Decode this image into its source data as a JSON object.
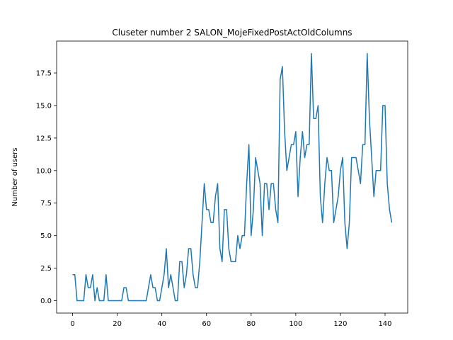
{
  "chart_data": {
    "type": "line",
    "title": "Cluseter number 2 SALON_MojeFixedPostActOldColumns",
    "xlabel": "",
    "ylabel": "Number of users",
    "xlim": [
      -7.15,
      150.15
    ],
    "ylim": [
      -0.95,
      19.95
    ],
    "xticks": [
      0,
      20,
      40,
      60,
      80,
      100,
      120,
      140
    ],
    "xtick_labels": [
      "0",
      "20",
      "40",
      "60",
      "80",
      "100",
      "120",
      "140"
    ],
    "yticks": [
      0,
      2.5,
      5,
      7.5,
      10,
      12.5,
      15,
      17.5
    ],
    "ytick_labels": [
      "0.0",
      "2.5",
      "5.0",
      "7.5",
      "10.0",
      "12.5",
      "15.0",
      "17.5"
    ],
    "grid": false,
    "legend": false,
    "series": [
      {
        "color": "#1f77b4",
        "x": [
          0,
          1,
          2,
          3,
          4,
          5,
          6,
          7,
          8,
          9,
          10,
          11,
          12,
          13,
          14,
          15,
          16,
          17,
          18,
          19,
          20,
          21,
          22,
          23,
          24,
          25,
          26,
          27,
          28,
          29,
          30,
          31,
          32,
          33,
          34,
          35,
          36,
          37,
          38,
          39,
          40,
          41,
          42,
          43,
          44,
          45,
          46,
          47,
          48,
          49,
          50,
          51,
          52,
          53,
          54,
          55,
          56,
          57,
          58,
          59,
          60,
          61,
          62,
          63,
          64,
          65,
          66,
          67,
          68,
          69,
          70,
          71,
          72,
          73,
          74,
          75,
          76,
          77,
          78,
          79,
          80,
          81,
          82,
          83,
          84,
          85,
          86,
          87,
          88,
          89,
          90,
          91,
          92,
          93,
          94,
          95,
          96,
          97,
          98,
          99,
          100,
          101,
          102,
          103,
          104,
          105,
          106,
          107,
          108,
          109,
          110,
          111,
          112,
          113,
          114,
          115,
          116,
          117,
          118,
          119,
          120,
          121,
          122,
          123,
          124,
          125,
          126,
          127,
          128,
          129,
          130,
          131,
          132,
          133,
          134,
          135,
          136,
          137,
          138,
          139,
          140,
          141,
          142,
          143
        ],
        "y": [
          2,
          2,
          0,
          0,
          0,
          0,
          2,
          1,
          1,
          2,
          0,
          1,
          0,
          0,
          0,
          2,
          0,
          0,
          0,
          0,
          0,
          0,
          0,
          1,
          1,
          0,
          0,
          0,
          0,
          0,
          0,
          0,
          0,
          0,
          1,
          2,
          1,
          1,
          0,
          0,
          1,
          2,
          4,
          1,
          2,
          1,
          0,
          0,
          3,
          3,
          1,
          2,
          4,
          4,
          2,
          1,
          1,
          3,
          6,
          9,
          7,
          7,
          6,
          6,
          8,
          9,
          4,
          3,
          7,
          7,
          4,
          3,
          3,
          3,
          5,
          4,
          5,
          5,
          9,
          12,
          5,
          7,
          11,
          10,
          9,
          5,
          9,
          9,
          7,
          9,
          9,
          7,
          6,
          17,
          18,
          13,
          10,
          11,
          12,
          12,
          13,
          8,
          11,
          13,
          11,
          12,
          12,
          19,
          14,
          14,
          15,
          8,
          6,
          9,
          11,
          10,
          10,
          6,
          7,
          8,
          10,
          11,
          6,
          4,
          6,
          11,
          11,
          11,
          10,
          9,
          12,
          12,
          19,
          14,
          11,
          8,
          10,
          10,
          10,
          15,
          15,
          9,
          7,
          6
        ]
      }
    ]
  }
}
